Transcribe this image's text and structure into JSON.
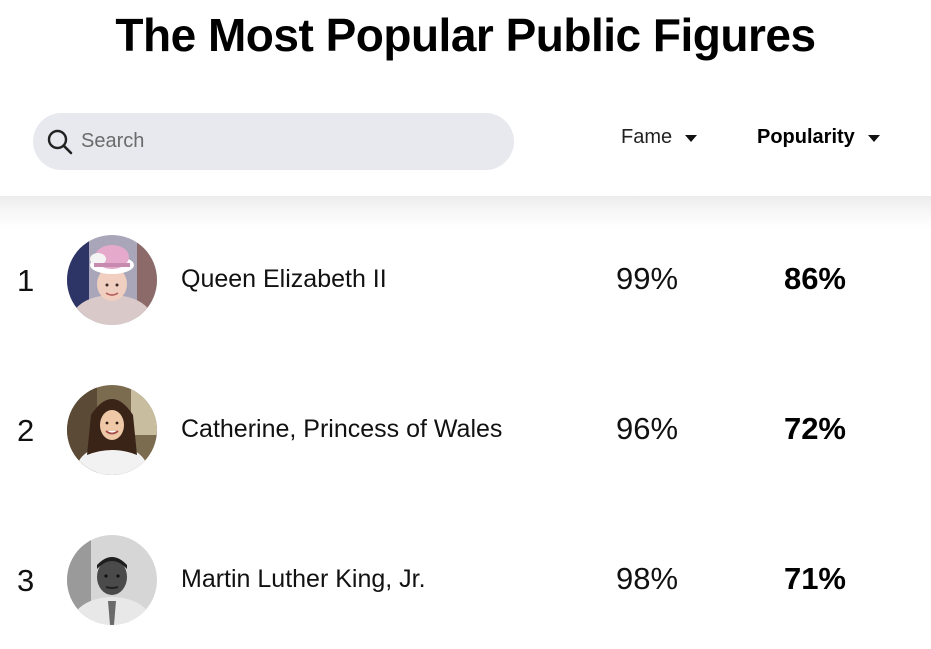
{
  "header": {
    "title": "The Most Popular Public Figures"
  },
  "search": {
    "placeholder": "Search",
    "value": ""
  },
  "sort": {
    "fame_label": "Fame",
    "popularity_label": "Popularity",
    "active": "Popularity"
  },
  "people": [
    {
      "rank": "1",
      "name": "Queen Elizabeth II",
      "fame": "99%",
      "popularity": "86%",
      "avatar": "photo-queen-elizabeth"
    },
    {
      "rank": "2",
      "name": "Catherine, Princess of Wales",
      "fame": "96%",
      "popularity": "72%",
      "avatar": "photo-princess-catherine"
    },
    {
      "rank": "3",
      "name": "Martin Luther King, Jr.",
      "fame": "98%",
      "popularity": "71%",
      "avatar": "photo-mlk"
    }
  ]
}
